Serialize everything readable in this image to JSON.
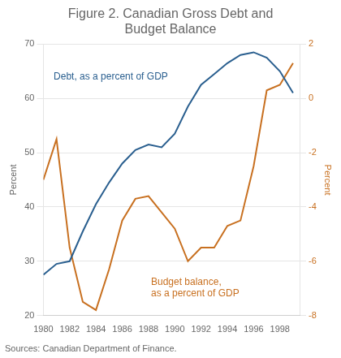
{
  "chart_data": {
    "type": "line",
    "title": "Figure 2. Canadian Gross Debt and\nBudget Balance",
    "source": "Sources: Canadian Department of Finance.",
    "x": [
      1980,
      1981,
      1982,
      1983,
      1984,
      1985,
      1986,
      1987,
      1988,
      1989,
      1990,
      1991,
      1992,
      1993,
      1994,
      1995,
      1996,
      1997,
      1998,
      1999
    ],
    "xlim": [
      1980,
      1999.5
    ],
    "xticks": [
      1980,
      1982,
      1984,
      1986,
      1988,
      1990,
      1992,
      1994,
      1996,
      1998
    ],
    "ylabel": "Percent",
    "ylim": [
      20,
      70
    ],
    "yticks": [
      20,
      30,
      40,
      50,
      60,
      70
    ],
    "y2label": "Percent",
    "y2lim": [
      -8,
      2
    ],
    "y2ticks": [
      -8,
      -6,
      -4,
      -2,
      0,
      2
    ],
    "grid": true,
    "series": [
      {
        "name": "Debt, as a percent of GDP",
        "color": "#2a5f8f",
        "values": [
          27.5,
          29.5,
          30.0,
          35.5,
          40.5,
          44.5,
          48.0,
          50.5,
          51.5,
          51.0,
          53.5,
          58.5,
          62.5,
          64.5,
          66.5,
          68.0,
          68.5,
          67.5,
          65.0,
          61.0
        ]
      },
      {
        "name": "Budget balance,\nas a percent of GDP",
        "color": "#c87020",
        "axis": "y2",
        "values": [
          -3.0,
          -1.5,
          -5.5,
          -7.5,
          -7.8,
          -6.3,
          -4.5,
          -3.7,
          -3.6,
          -4.2,
          -4.8,
          -6.0,
          -5.5,
          -5.5,
          -4.7,
          -4.5,
          -2.5,
          0.3,
          0.5,
          1.3
        ]
      }
    ]
  }
}
